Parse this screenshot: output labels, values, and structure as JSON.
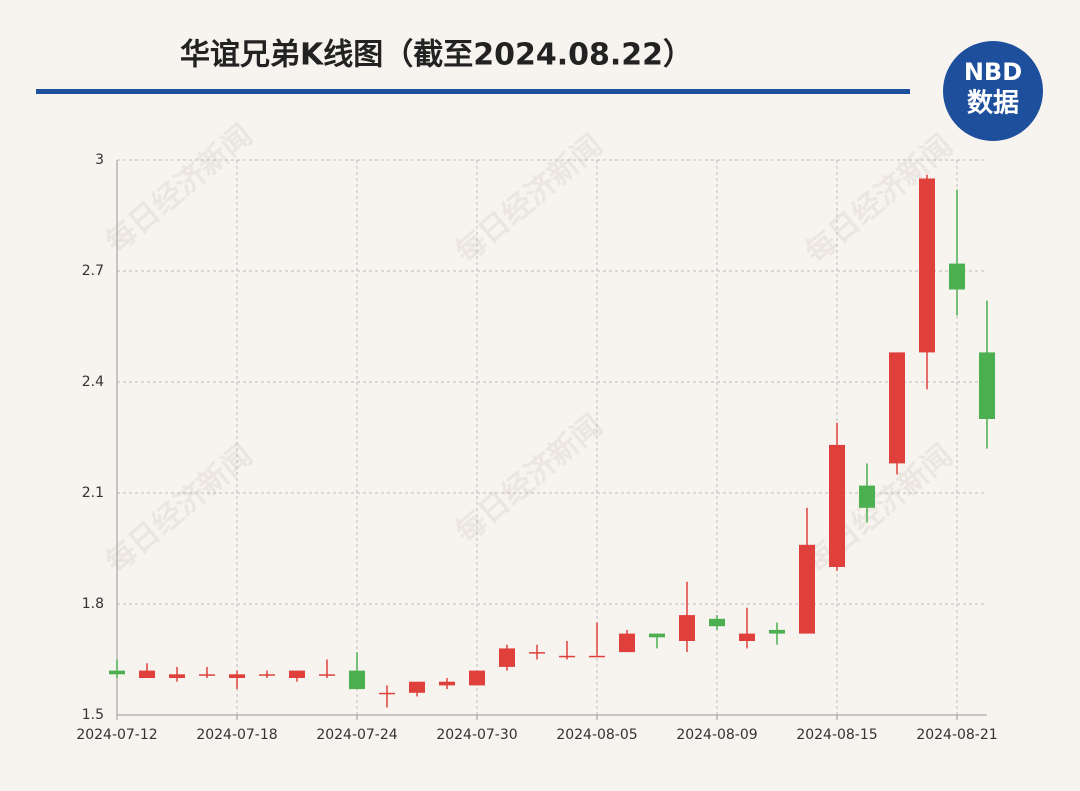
{
  "chart_data": {
    "type": "candlestick",
    "title": "华谊兄弟K线图（截至2024.08.22）",
    "logo": {
      "top": "NBD",
      "bottom": "数据"
    },
    "watermark": "每日经济新闻",
    "categories": [
      "2024-07-12",
      null,
      null,
      null,
      "2024-07-18",
      null,
      null,
      null,
      "2024-07-24",
      null,
      null,
      null,
      "2024-07-30",
      null,
      null,
      null,
      "2024-08-05",
      null,
      null,
      null,
      "2024-08-09",
      null,
      null,
      null,
      "2024-08-15",
      null,
      null,
      null,
      "2024-08-21",
      null
    ],
    "open": [
      1.62,
      1.6,
      1.6,
      1.61,
      1.6,
      1.61,
      1.6,
      1.61,
      1.62,
      1.56,
      1.56,
      1.58,
      1.58,
      1.63,
      1.67,
      1.66,
      1.66,
      1.67,
      1.72,
      1.7,
      1.76,
      1.7,
      1.73,
      1.72,
      1.9,
      2.12,
      2.18,
      2.48,
      2.72,
      2.48
    ],
    "high": [
      1.65,
      1.64,
      1.63,
      1.63,
      1.62,
      1.62,
      1.62,
      1.65,
      1.67,
      1.58,
      1.59,
      1.6,
      1.62,
      1.69,
      1.69,
      1.7,
      1.75,
      1.73,
      1.72,
      1.86,
      1.77,
      1.79,
      1.75,
      2.06,
      2.29,
      2.18,
      2.48,
      2.96,
      2.92,
      2.62
    ],
    "low": [
      1.6,
      1.6,
      1.59,
      1.6,
      1.57,
      1.6,
      1.59,
      1.6,
      1.57,
      1.52,
      1.55,
      1.57,
      1.58,
      1.62,
      1.65,
      1.65,
      1.66,
      1.67,
      1.68,
      1.67,
      1.73,
      1.68,
      1.69,
      1.72,
      1.89,
      2.02,
      2.15,
      2.38,
      2.58,
      2.22
    ],
    "close": [
      1.61,
      1.62,
      1.61,
      1.61,
      1.61,
      1.61,
      1.62,
      1.61,
      1.57,
      1.56,
      1.59,
      1.59,
      1.62,
      1.68,
      1.67,
      1.66,
      1.66,
      1.72,
      1.71,
      1.77,
      1.74,
      1.72,
      1.72,
      1.96,
      2.23,
      2.06,
      2.48,
      2.95,
      2.65,
      2.3
    ],
    "up_color": "#e0403b",
    "down_color": "#4caf50",
    "ylim": [
      1.5,
      3
    ],
    "yticks": [
      1.5,
      1.8,
      2.1,
      2.4,
      2.7,
      3
    ],
    "grid": true
  }
}
